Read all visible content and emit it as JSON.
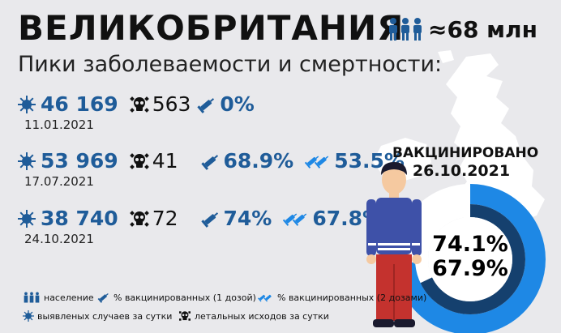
{
  "header": {
    "title": "ВЕЛИКОБРИТАНИЯ",
    "population": "≈68 млн",
    "population_icon": "people-icon"
  },
  "subtitle": "Пики заболеваемости и смертности:",
  "peaks": [
    {
      "cases": "46 169",
      "date": "11.01.2021",
      "deaths": "563",
      "vaccinated_one_dose": "0%",
      "vaccinated_two_doses": ""
    },
    {
      "cases": "53 969",
      "date": "17.07.2021",
      "deaths": "41",
      "vaccinated_one_dose": "68.9%",
      "vaccinated_two_doses": "53.5%"
    },
    {
      "cases": "38 740",
      "date": "24.10.2021",
      "deaths": "72",
      "vaccinated_one_dose": "74%",
      "vaccinated_two_doses": "67.8%"
    }
  ],
  "vaccinated": {
    "label": "ВАКЦИНИРОВАНО",
    "date": "26.10.2021",
    "one_dose": "74.1%",
    "two_doses": "67.9%",
    "one_dose_value": 74.1,
    "two_doses_value": 67.9
  },
  "legend": {
    "population": "население",
    "one_dose": "% вакцинированных (1 дозой)",
    "two_doses": "% вакцинированных (2 дозами)",
    "cases": "выявленых случаев за сутки",
    "deaths": "летальных исходов за сутки"
  },
  "colors": {
    "accent": "#1f5c99",
    "donut_outer": "#1e88e5",
    "donut_inner": "#15406e",
    "background": "#e9e9ec"
  }
}
